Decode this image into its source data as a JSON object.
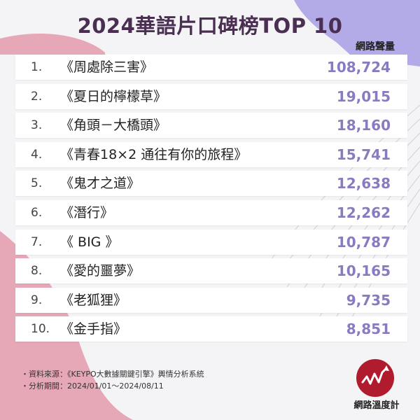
{
  "title": "2024華語片口碑榜TOP 10",
  "column_header": "網路聲量",
  "footer": {
    "source": "・資料來源：《KEYPO大數據關鍵引擎》輿情分析系統",
    "period": "・分析期間：2024/01/01～2024/08/11"
  },
  "logo": {
    "text": "網路溫度計",
    "icon": "trend-line-icon"
  },
  "colors": {
    "title": "#4a2f52",
    "value": "#8a7ac0",
    "pink": "#e6a7b6",
    "purple": "#b3abe8",
    "logo": "#b01c2e"
  },
  "chart_data": {
    "type": "table",
    "title": "2024華語片口碑榜TOP 10",
    "ylabel": "網路聲量",
    "rows": [
      {
        "rank": "1.",
        "name": "《周處除三害》",
        "value": "108,724"
      },
      {
        "rank": "2.",
        "name": "《夏日的檸檬草》",
        "value": "19,015"
      },
      {
        "rank": "3.",
        "name": "《角頭－大橋頭》",
        "value": "18,160"
      },
      {
        "rank": "4.",
        "name": "《青春18×2 通往有你的旅程》",
        "value": "15,741"
      },
      {
        "rank": "5.",
        "name": "《鬼才之道》",
        "value": "12,638"
      },
      {
        "rank": "6.",
        "name": "《潛行》",
        "value": "12,262"
      },
      {
        "rank": "7.",
        "name": "《 BIG 》",
        "value": "10,787"
      },
      {
        "rank": "8.",
        "name": "《愛的噩夢》",
        "value": "10,165"
      },
      {
        "rank": "9.",
        "name": "《老狐狸》",
        "value": "9,735"
      },
      {
        "rank": "10.",
        "name": "《金手指》",
        "value": "8,851"
      }
    ]
  }
}
